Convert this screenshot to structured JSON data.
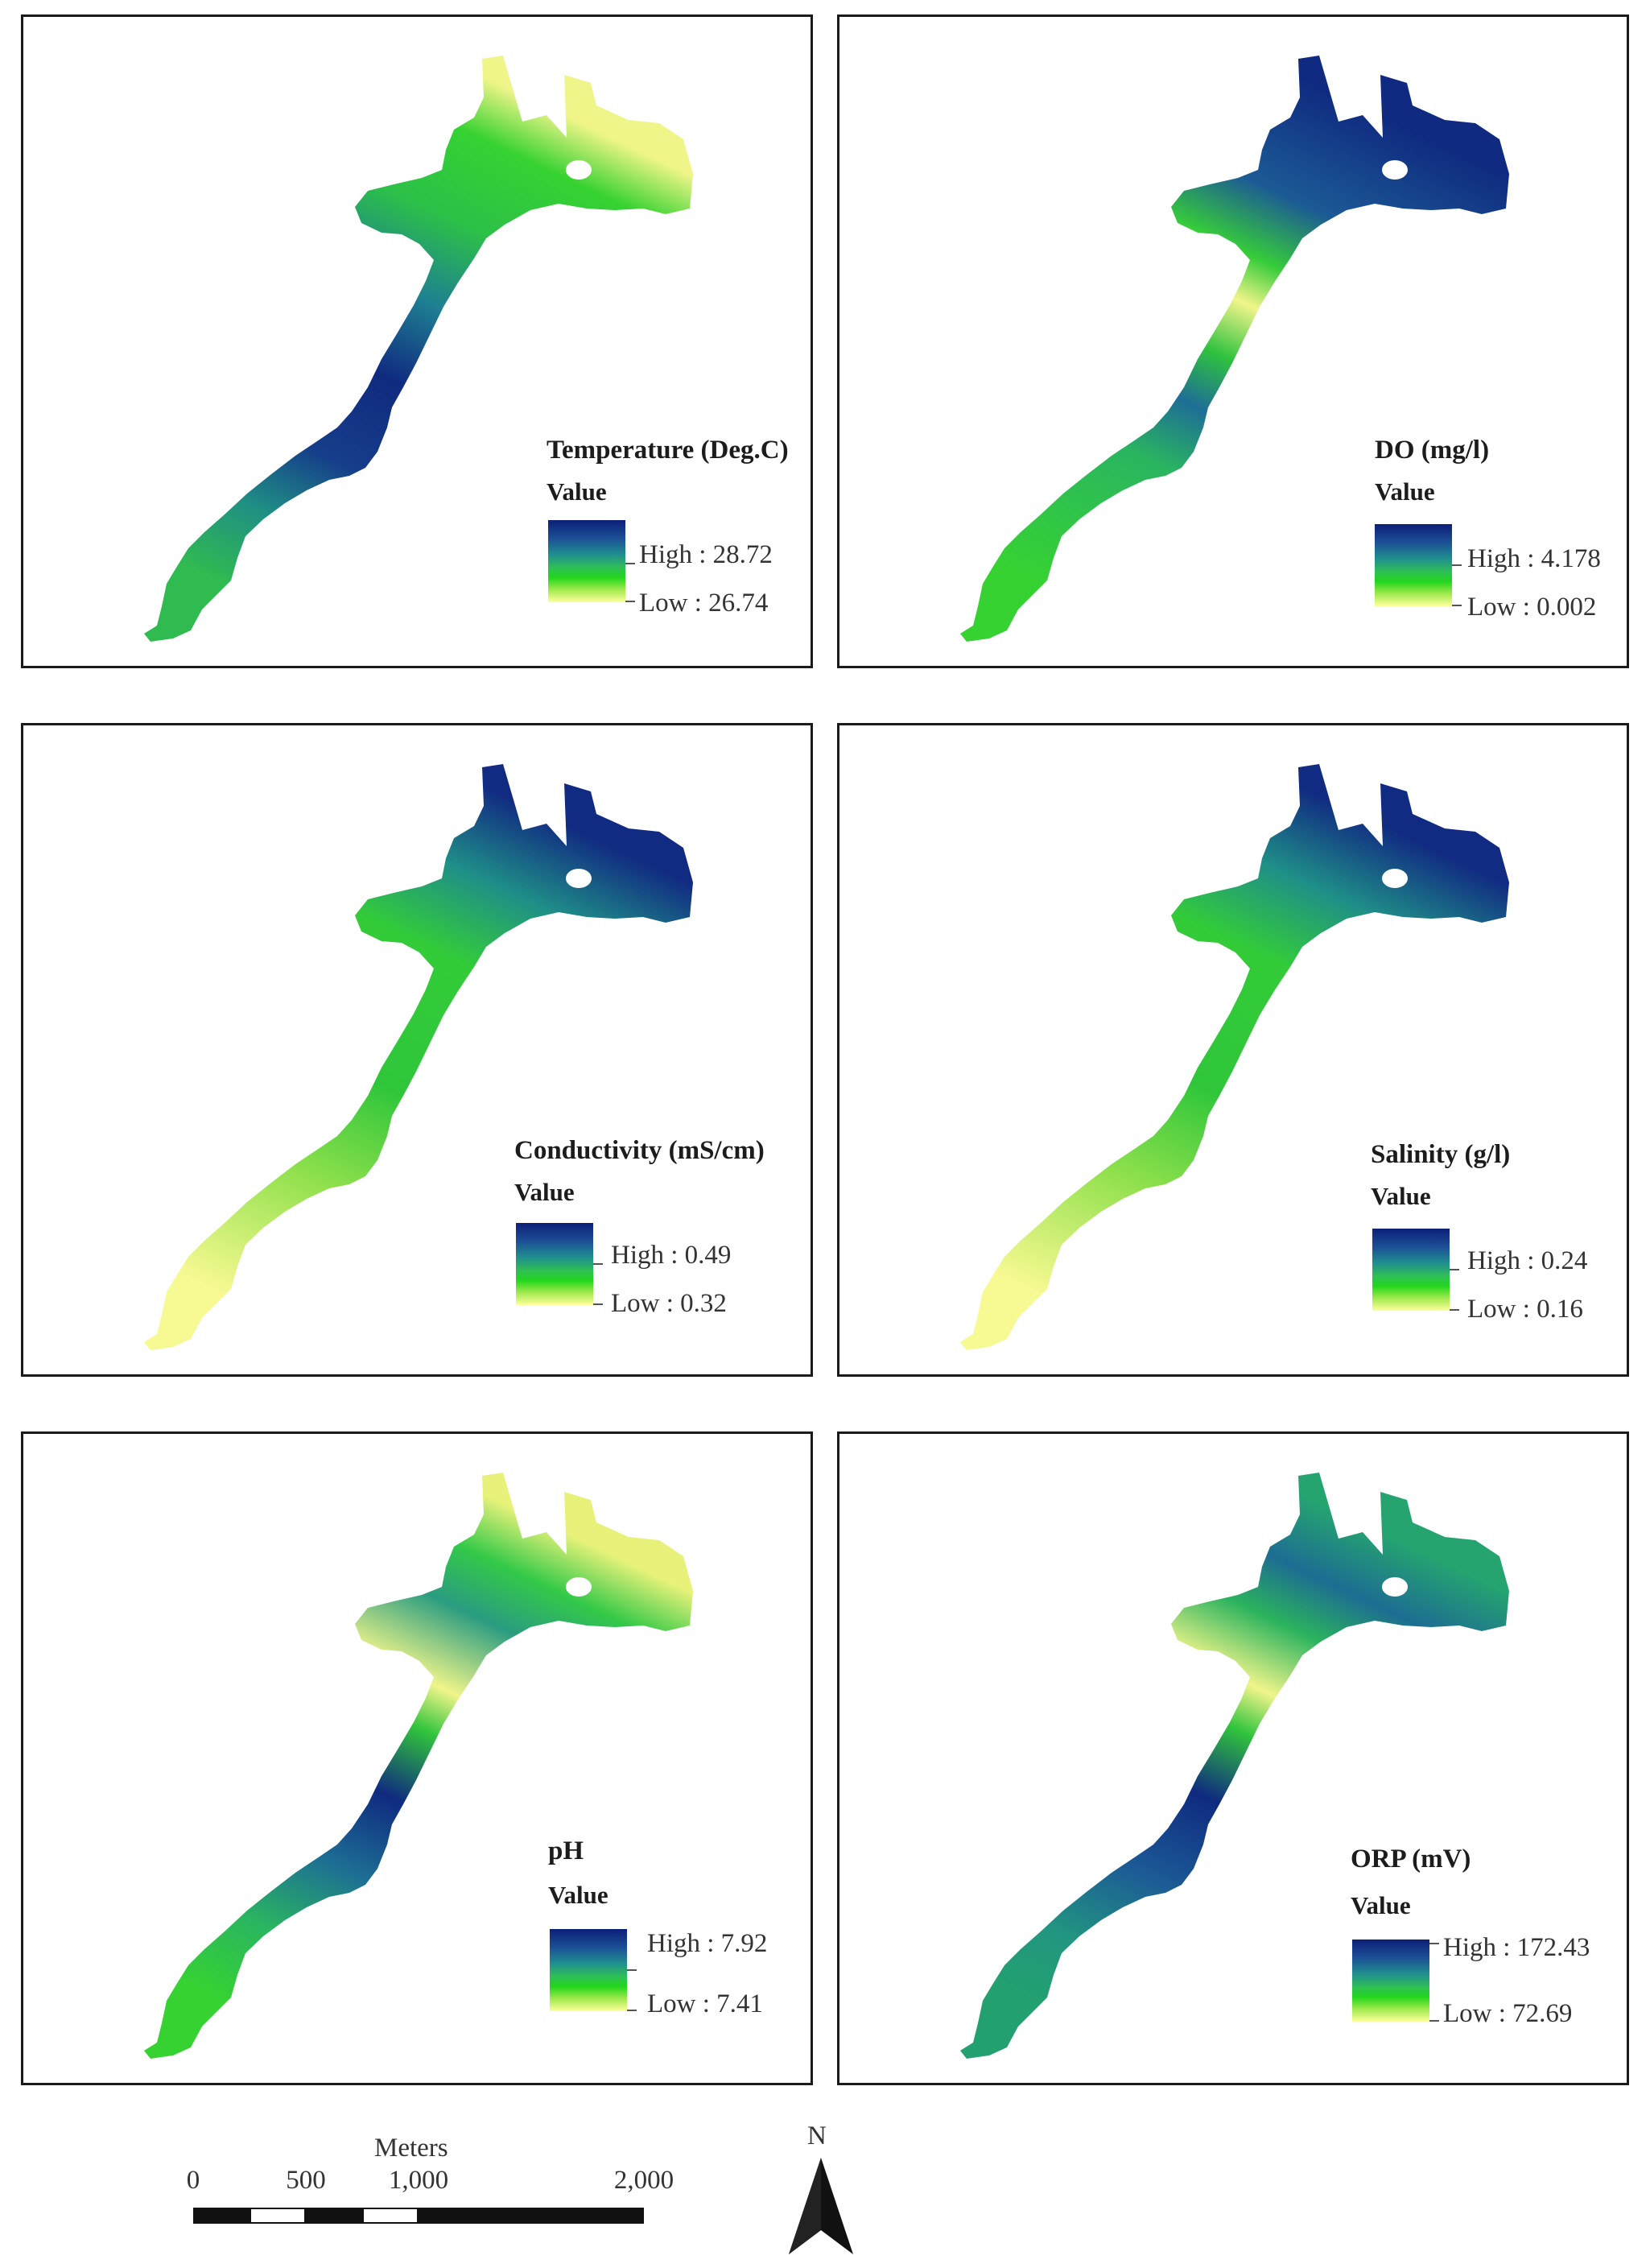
{
  "panels": [
    {
      "title": "Temperature (Deg.C)",
      "value_label": "Value",
      "high": "High : 28.72",
      "low": "Low : 26.74"
    },
    {
      "title": "DO (mg/l)",
      "value_label": "Value",
      "high": "High : 4.178",
      "low": "Low : 0.002"
    },
    {
      "title": "Conductivity (mS/cm)",
      "value_label": "Value",
      "high": "High : 0.49",
      "low": "Low : 0.32"
    },
    {
      "title": "Salinity (g/l)",
      "value_label": "Value",
      "high": "High : 0.24",
      "low": "Low : 0.16"
    },
    {
      "title": "pH",
      "value_label": "Value",
      "high": "High : 7.92",
      "low": "Low : 7.41"
    },
    {
      "title": "ORP (mV)",
      "value_label": "Value",
      "high": "High : 172.43",
      "low": "Low : 72.69"
    }
  ],
  "scale_bar": {
    "unit": "Meters",
    "ticks": [
      "0",
      "500",
      "1,000",
      "2,000"
    ]
  },
  "north_arrow": {
    "label": "N"
  },
  "colors": {
    "high": "#0c1f78",
    "mid": "#22d61d",
    "low": "#ffff9c"
  }
}
